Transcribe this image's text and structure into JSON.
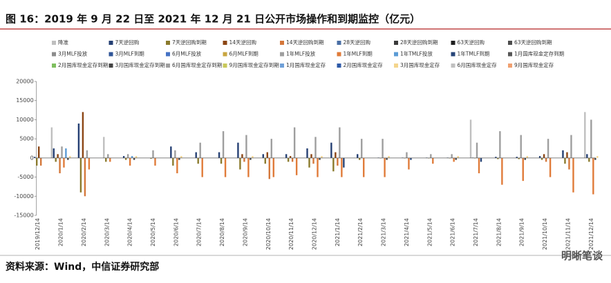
{
  "chart_data": {
    "type": "bar",
    "title": "图 16：2019 年 9 月 22 日至 2021 年 12 月 21 日公开市场操作和到期监控（亿元）",
    "source": "资料来源：Wind，中信证券研究部",
    "watermark": "明晰笔谈",
    "categories": [
      "2019/12/14",
      "2020/1/14",
      "2020/2/14",
      "2020/3/14",
      "2020/4/14",
      "2020/5/14",
      "2020/6/14",
      "2020/7/14",
      "2020/8/14",
      "2020/9/14",
      "2020/10/14",
      "2020/11/14",
      "2020/12/14",
      "2021/1/14",
      "2021/2/14",
      "2021/3/14",
      "2021/4/14",
      "2021/5/14",
      "2021/6/14",
      "2021/7/14",
      "2021/8/14",
      "2021/9/14",
      "2021/10/14",
      "2021/11/14",
      "2021/12/14"
    ],
    "ylim": [
      -15000,
      20000
    ],
    "yticks": [
      -15000,
      -10000,
      -5000,
      0,
      5000,
      10000,
      15000,
      20000
    ],
    "series": [
      {
        "name": "降准",
        "color": "#bfbfbf",
        "values": [
          0,
          8000,
          0,
          5500,
          0,
          0,
          0,
          0,
          0,
          0,
          0,
          0,
          0,
          0,
          0,
          0,
          0,
          0,
          0,
          10000,
          0,
          0,
          0,
          0,
          12000
        ]
      },
      {
        "name": "7天逆回购",
        "color": "#243f73",
        "values": [
          300,
          2500,
          9000,
          0,
          500,
          0,
          3000,
          1500,
          1500,
          4000,
          1000,
          1000,
          2500,
          4000,
          1000,
          100,
          100,
          100,
          100,
          100,
          300,
          300,
          500,
          2000,
          1000
        ]
      },
      {
        "name": "7天逆回购到期",
        "color": "#8a7a2c",
        "values": [
          -2000,
          -1000,
          -9000,
          -1000,
          -500,
          -200,
          -2000,
          -1500,
          -1500,
          -3000,
          -1500,
          -1000,
          -2500,
          -3500,
          -500,
          -100,
          -100,
          -100,
          -100,
          -100,
          -300,
          -300,
          -500,
          -1500,
          -1000
        ]
      },
      {
        "name": "14天逆回购",
        "color": "#8b4513",
        "values": [
          3000,
          1000,
          12000,
          0,
          0,
          0,
          0,
          0,
          0,
          1000,
          1500,
          500,
          1000,
          1500,
          0,
          0,
          0,
          0,
          0,
          0,
          0,
          0,
          1000,
          1500,
          0
        ]
      },
      {
        "name": "14天逆回购到期",
        "color": "#d4773a",
        "values": [
          -2000,
          -4000,
          -10000,
          0,
          0,
          0,
          0,
          0,
          0,
          -1000,
          -5500,
          -1000,
          -1500,
          -2000,
          0,
          0,
          0,
          0,
          0,
          0,
          0,
          0,
          -1000,
          -3000,
          0
        ]
      },
      {
        "name": "28天逆回购",
        "color": "#4a6fa5",
        "values": [
          0,
          0,
          0,
          0,
          0,
          0,
          0,
          0,
          0,
          0,
          0,
          0,
          0,
          0,
          0,
          0,
          0,
          0,
          0,
          0,
          0,
          0,
          0,
          0,
          0
        ]
      },
      {
        "name": "28天逆回购到期",
        "color": "#3a3a3a",
        "values": [
          0,
          0,
          0,
          0,
          0,
          0,
          0,
          0,
          0,
          0,
          0,
          0,
          0,
          0,
          0,
          0,
          0,
          0,
          0,
          0,
          0,
          0,
          0,
          0,
          0
        ]
      },
      {
        "name": "63天逆回购",
        "color": "#1f1f1f",
        "values": [
          0,
          0,
          0,
          0,
          0,
          0,
          0,
          0,
          0,
          0,
          0,
          0,
          0,
          0,
          0,
          0,
          0,
          0,
          0,
          0,
          0,
          0,
          0,
          0,
          0
        ]
      },
      {
        "name": "63天逆回购到期",
        "color": "#4d4d4d",
        "values": [
          0,
          0,
          0,
          0,
          0,
          0,
          0,
          0,
          0,
          0,
          0,
          0,
          0,
          0,
          0,
          0,
          0,
          0,
          0,
          0,
          0,
          0,
          0,
          0,
          0
        ]
      },
      {
        "name": "3月MLF投放",
        "color": "#8c8c8c",
        "values": [
          0,
          0,
          0,
          0,
          0,
          0,
          0,
          0,
          0,
          0,
          0,
          0,
          0,
          0,
          0,
          0,
          0,
          0,
          0,
          0,
          0,
          0,
          0,
          0,
          0
        ]
      },
      {
        "name": "3月MLF到期",
        "color": "#2f5597",
        "values": [
          0,
          0,
          0,
          0,
          0,
          0,
          0,
          0,
          0,
          0,
          0,
          0,
          0,
          0,
          0,
          0,
          0,
          0,
          0,
          0,
          0,
          0,
          0,
          0,
          0
        ]
      },
      {
        "name": "6月MLF投放",
        "color": "#4472c4",
        "values": [
          0,
          0,
          0,
          0,
          0,
          0,
          0,
          0,
          0,
          0,
          0,
          0,
          0,
          0,
          0,
          0,
          0,
          0,
          0,
          0,
          0,
          0,
          0,
          0,
          0
        ]
      },
      {
        "name": "6月MLF到期",
        "color": "#c9a640",
        "values": [
          0,
          0,
          0,
          0,
          0,
          0,
          0,
          0,
          0,
          0,
          0,
          0,
          0,
          0,
          0,
          0,
          0,
          0,
          0,
          0,
          0,
          0,
          0,
          0,
          0
        ]
      },
      {
        "name": "1年MLF投放",
        "color": "#9e9e9e",
        "values": [
          0,
          3000,
          2000,
          1000,
          1000,
          2000,
          2000,
          4000,
          7000,
          6000,
          5000,
          8000,
          5500,
          8000,
          5000,
          5000,
          1500,
          1000,
          1000,
          4000,
          7000,
          6000,
          5000,
          6000,
          10000
        ]
      },
      {
        "name": "1年MLF到期",
        "color": "#e07b39",
        "values": [
          0,
          -2500,
          -3000,
          -1000,
          -2000,
          -2000,
          -4000,
          -5000,
          -5000,
          -5000,
          -5000,
          -4500,
          -5000,
          -5000,
          -5000,
          -5000,
          -3000,
          -1500,
          -1000,
          -4000,
          -7000,
          -6000,
          -5000,
          -9000,
          -9500
        ]
      },
      {
        "name": "1年TMLF投放",
        "color": "#5b9bd5",
        "values": [
          0,
          2500,
          0,
          0,
          500,
          0,
          0,
          0,
          0,
          0,
          0,
          0,
          0,
          0,
          0,
          0,
          0,
          0,
          0,
          0,
          0,
          0,
          0,
          0,
          0
        ]
      },
      {
        "name": "1年TMLF到期",
        "color": "#264478",
        "values": [
          0,
          0,
          0,
          0,
          0,
          0,
          0,
          0,
          0,
          0,
          0,
          0,
          0,
          -2500,
          0,
          0,
          -500,
          0,
          0,
          -1000,
          0,
          0,
          0,
          0,
          0
        ]
      },
      {
        "name": "1月国库现金定存到期",
        "color": "#555555",
        "values": [
          0,
          0,
          0,
          0,
          0,
          0,
          0,
          0,
          0,
          0,
          0,
          0,
          0,
          0,
          0,
          0,
          0,
          0,
          0,
          0,
          0,
          0,
          0,
          0,
          0
        ]
      },
      {
        "name": "2月国库现金定存到期",
        "color": "#7fbf5f",
        "values": [
          0,
          0,
          0,
          0,
          0,
          0,
          0,
          0,
          0,
          0,
          0,
          0,
          0,
          0,
          0,
          0,
          0,
          0,
          0,
          0,
          0,
          0,
          0,
          0,
          0
        ]
      },
      {
        "name": "3月国库现金定存到期",
        "color": "#444444",
        "values": [
          0,
          -500,
          0,
          0,
          -500,
          0,
          -500,
          0,
          0,
          -500,
          0,
          0,
          -500,
          0,
          0,
          -500,
          0,
          0,
          -500,
          0,
          0,
          -500,
          0,
          0,
          -500
        ]
      },
      {
        "name": "6月国库现金定存到期",
        "color": "#9e9e9e",
        "values": [
          0,
          0,
          0,
          0,
          0,
          0,
          0,
          0,
          0,
          0,
          0,
          0,
          0,
          0,
          0,
          0,
          0,
          0,
          0,
          0,
          0,
          0,
          0,
          0,
          0
        ]
      },
      {
        "name": "9月国库现金定存到期",
        "color": "#c8c85a",
        "values": [
          0,
          0,
          0,
          0,
          0,
          0,
          0,
          0,
          0,
          0,
          0,
          0,
          0,
          0,
          0,
          0,
          0,
          0,
          0,
          0,
          0,
          0,
          0,
          0,
          0
        ]
      },
      {
        "name": "1月国库现金定存",
        "color": "#6fa0d8",
        "values": [
          0,
          0,
          0,
          0,
          0,
          0,
          0,
          0,
          0,
          0,
          0,
          0,
          0,
          0,
          0,
          0,
          0,
          0,
          0,
          0,
          0,
          0,
          0,
          0,
          0
        ]
      },
      {
        "name": "2月国库现金定存",
        "color": "#2e5aa8",
        "values": [
          0,
          0,
          0,
          0,
          0,
          0,
          0,
          0,
          0,
          0,
          0,
          0,
          0,
          0,
          0,
          0,
          0,
          0,
          0,
          0,
          0,
          0,
          0,
          0,
          0
        ]
      },
      {
        "name": "3月国库现金定存",
        "color": "#f4d58d",
        "values": [
          0,
          500,
          0,
          0,
          500,
          0,
          500,
          0,
          0,
          500,
          0,
          0,
          500,
          0,
          0,
          500,
          0,
          0,
          500,
          0,
          0,
          500,
          0,
          0,
          500
        ]
      },
      {
        "name": "6月国库现金定存",
        "color": "#c0c0c0",
        "values": [
          0,
          0,
          0,
          0,
          0,
          0,
          0,
          0,
          0,
          0,
          0,
          0,
          0,
          0,
          0,
          0,
          0,
          0,
          0,
          0,
          0,
          0,
          0,
          0,
          0
        ]
      },
      {
        "name": "9月国库现金定存",
        "color": "#f0a070",
        "values": [
          0,
          0,
          0,
          0,
          0,
          0,
          0,
          0,
          0,
          0,
          0,
          0,
          0,
          0,
          0,
          0,
          0,
          0,
          0,
          0,
          0,
          0,
          0,
          0,
          0
        ]
      }
    ]
  }
}
